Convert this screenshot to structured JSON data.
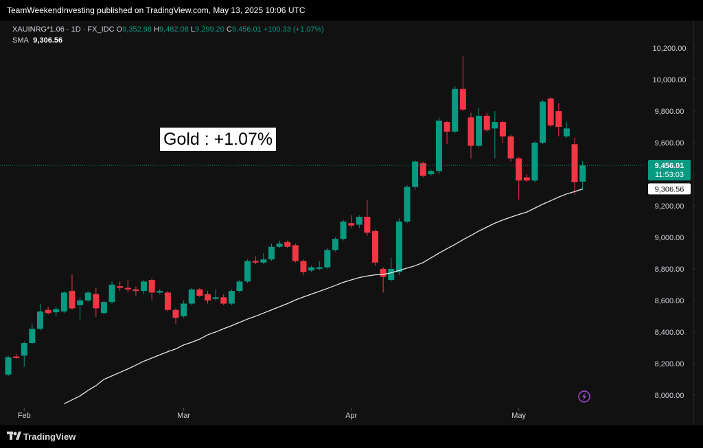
{
  "header": {
    "text": "TeamWeekendInvesting published on TradingView.com, May 13, 2025 10:06 UTC"
  },
  "footer": {
    "brand": "TradingView"
  },
  "chart_data": {
    "type": "candlestick",
    "legend": {
      "symbol": "XAUINRG*1.06 · 1D · FX_IDC",
      "o_label": "O",
      "o_value": "9,352.98",
      "h_label": "H",
      "h_value": "9,482.08",
      "l_label": "L",
      "l_value": "9,299.20",
      "c_label": "C",
      "c_value": "9,456.01",
      "change": "+100.33 (+1.07%)",
      "sma_label": "SMA",
      "sma_value": "9,306.56"
    },
    "annotation": "Gold : +1.07%",
    "last_price_label": "9,456.01",
    "countdown": "11:53:03",
    "sma_price_label": "9,306.56",
    "up_color": "#089981",
    "down_color": "#f23645",
    "categories": [
      null,
      null,
      "Feb",
      null,
      null,
      null,
      null,
      null,
      null,
      null,
      null,
      null,
      null,
      null,
      null,
      null,
      null,
      null,
      null,
      null,
      null,
      null,
      "Mar",
      null,
      null,
      null,
      null,
      null,
      null,
      null,
      null,
      null,
      null,
      null,
      null,
      null,
      null,
      null,
      null,
      null,
      null,
      null,
      null,
      "Apr",
      null,
      null,
      null,
      null,
      null,
      null,
      null,
      null,
      null,
      null,
      null,
      null,
      null,
      null,
      null,
      null,
      null,
      null,
      null,
      null,
      "May",
      null,
      null,
      null,
      null,
      null,
      null,
      null,
      null
    ],
    "ohlc": {
      "open": [
        8130,
        8245,
        8250,
        8330,
        8420,
        8540,
        8525,
        8530,
        8660,
        8570,
        8600,
        8640,
        8520,
        8590,
        8690,
        8680,
        8670,
        8660,
        8730,
        8650,
        8650,
        8540,
        8500,
        8580,
        8670,
        8640,
        8610,
        8620,
        8580,
        8660,
        8720,
        8850,
        8840,
        8860,
        8940,
        8970,
        8950,
        8850,
        8790,
        8800,
        8810,
        8920,
        8990,
        9090,
        9080,
        9130,
        9040,
        8800,
        8730,
        8780,
        9100,
        9320,
        9470,
        9400,
        9420,
        9730,
        9670,
        9940,
        9760,
        9580,
        9770,
        9690,
        9730,
        9640,
        9500,
        9380,
        9360,
        9600,
        9880,
        9800,
        9640,
        9590,
        9352.98
      ],
      "high": [
        8250,
        8260,
        8340,
        8450,
        8580,
        8560,
        8560,
        8660,
        8765,
        8620,
        8660,
        8680,
        8600,
        8720,
        8720,
        8730,
        8690,
        8730,
        8740,
        8670,
        8660,
        8550,
        8600,
        8680,
        8680,
        8660,
        8670,
        8640,
        8670,
        8730,
        8860,
        8880,
        8900,
        8960,
        8980,
        8980,
        8960,
        8860,
        8820,
        8850,
        8930,
        9000,
        9110,
        9140,
        9140,
        9235,
        9050,
        8810,
        8870,
        9120,
        9330,
        9490,
        9480,
        9430,
        9760,
        9740,
        9960,
        10148,
        9790,
        9820,
        9790,
        9800,
        9740,
        9650,
        9510,
        9400,
        9610,
        9870,
        9890,
        9850,
        9730,
        9630,
        9482.08
      ],
      "low": [
        8120,
        8230,
        8180,
        8320,
        8410,
        8510,
        8500,
        8520,
        8540,
        8480,
        8590,
        8495,
        8510,
        8580,
        8660,
        8650,
        8630,
        8640,
        8600,
        8640,
        8530,
        8450,
        8490,
        8570,
        8620,
        8580,
        8600,
        8570,
        8570,
        8650,
        8710,
        8830,
        8830,
        8850,
        8930,
        8930,
        8840,
        8760,
        8780,
        8790,
        8800,
        8910,
        8980,
        9060,
        9060,
        9010,
        8820,
        8650,
        8720,
        8760,
        9090,
        9300,
        9380,
        9390,
        9400,
        9590,
        9660,
        9800,
        9500,
        9570,
        9670,
        9500,
        9600,
        9480,
        9240,
        9350,
        9350,
        9590,
        9700,
        9640,
        9630,
        9270,
        9299.2
      ],
      "close": [
        8240,
        8235,
        8330,
        8420,
        8530,
        8520,
        8545,
        8650,
        8550,
        8600,
        8650,
        8550,
        8590,
        8700,
        8680,
        8670,
        8660,
        8720,
        8650,
        8660,
        8540,
        8490,
        8580,
        8670,
        8630,
        8600,
        8620,
        8580,
        8660,
        8720,
        8850,
        8840,
        8860,
        8940,
        8960,
        8940,
        8850,
        8780,
        8810,
        8810,
        8920,
        8990,
        9100,
        9075,
        9130,
        9030,
        8840,
        8750,
        8800,
        9100,
        9320,
        9480,
        9390,
        9420,
        9740,
        9670,
        9940,
        9810,
        9580,
        9770,
        9680,
        9730,
        9640,
        9500,
        9360,
        9360,
        9600,
        9860,
        9710,
        9700,
        9690,
        9350,
        9456.01
      ]
    },
    "sma": {
      "name": "SMA",
      "color": "#e8e8e8",
      "values": [
        null,
        null,
        null,
        null,
        null,
        null,
        null,
        7945,
        7970,
        7995,
        8030,
        8060,
        8100,
        8122,
        8144,
        8166,
        8190,
        8215,
        8235,
        8255,
        8275,
        8293,
        8318,
        8335,
        8355,
        8382,
        8400,
        8421,
        8440,
        8461,
        8482,
        8500,
        8520,
        8540,
        8560,
        8580,
        8603,
        8622,
        8640,
        8658,
        8676,
        8695,
        8715,
        8730,
        8745,
        8755,
        8762,
        8765,
        8775,
        8790,
        8805,
        8820,
        8840,
        8870,
        8900,
        8928,
        8955,
        8985,
        9012,
        9040,
        9065,
        9090,
        9110,
        9128,
        9145,
        9160,
        9185,
        9210,
        9232,
        9255,
        9275,
        9290,
        9306.56
      ]
    },
    "ylim": [
      7917,
      10365
    ],
    "yticks": [
      {
        "value": 8000,
        "label": "8,000.00"
      },
      {
        "value": 8200,
        "label": "8,200.00"
      },
      {
        "value": 8400,
        "label": "8,400.00"
      },
      {
        "value": 8600,
        "label": "8,600.00"
      },
      {
        "value": 8800,
        "label": "8,800.00"
      },
      {
        "value": 9000,
        "label": "9,000.00"
      },
      {
        "value": 9200,
        "label": "9,200.00"
      },
      {
        "value": 9400,
        "label": "9,400.00"
      },
      {
        "value": 9600,
        "label": "9,600.00"
      },
      {
        "value": 9800,
        "label": "9,800.00"
      },
      {
        "value": 10000,
        "label": "10,000.00"
      },
      {
        "value": 10200,
        "label": "10,200.00"
      }
    ],
    "grid": false
  }
}
